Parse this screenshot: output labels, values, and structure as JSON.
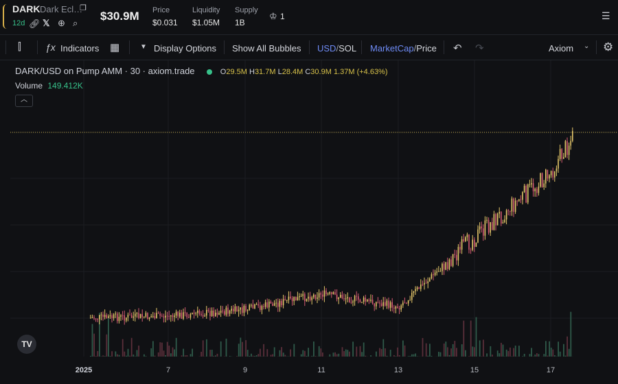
{
  "token": {
    "ticker": "DARK",
    "name": "Dark Ecl…",
    "age": "12d",
    "market_cap": "$30.9M",
    "stats": [
      {
        "label": "Price",
        "value": "$0.031"
      },
      {
        "label": "Liquidity",
        "value": "$1.05M"
      },
      {
        "label": "Supply",
        "value": "1B"
      }
    ],
    "holders_count": "1"
  },
  "toolbar": {
    "indicators": "Indicators",
    "display_options": "Display Options",
    "show_all_bubbles": "Show All Bubbles",
    "currency_primary": "USD",
    "currency_secondary": "SOL",
    "mode_primary": "MarketCap",
    "mode_secondary": "Price",
    "source": "Axiom",
    "divider": "/"
  },
  "legend": {
    "symbol": "DARK/USD on Pump AMM · 30 · axiom.trade",
    "o_label": "O",
    "o": "29.5M",
    "h_label": "H",
    "h": "31.7M",
    "l_label": "L",
    "l": "28.4M",
    "c_label": "C",
    "c": "30.9M",
    "change": "1.37M (+4.63%)",
    "volume_label": "Volume",
    "volume_value": "149.412K"
  },
  "colors": {
    "up": "#e6c86a",
    "down": "#d45a73",
    "volume_up": "#2f5a4a",
    "volume_down": "#5a2f3a",
    "last_price_line": "#c8b04a"
  },
  "chart_data": {
    "type": "candlestick",
    "interval": "30",
    "x_tick_labels": [
      "2025",
      "7",
      "9",
      "11",
      "13",
      "15",
      "17"
    ],
    "last_close": "30.9M",
    "approx_trend": [
      {
        "x": "2025",
        "y": 2.2
      },
      {
        "x": "7",
        "y": 2.5
      },
      {
        "x": "9",
        "y": 3.5
      },
      {
        "x": "11",
        "y": 6.0
      },
      {
        "x": "13",
        "y": 4.0
      },
      {
        "x": "15",
        "y": 15.0
      },
      {
        "x": "17",
        "y": 25.0
      },
      {
        "x": "17",
        "y": 30.9
      }
    ],
    "grid": true
  }
}
